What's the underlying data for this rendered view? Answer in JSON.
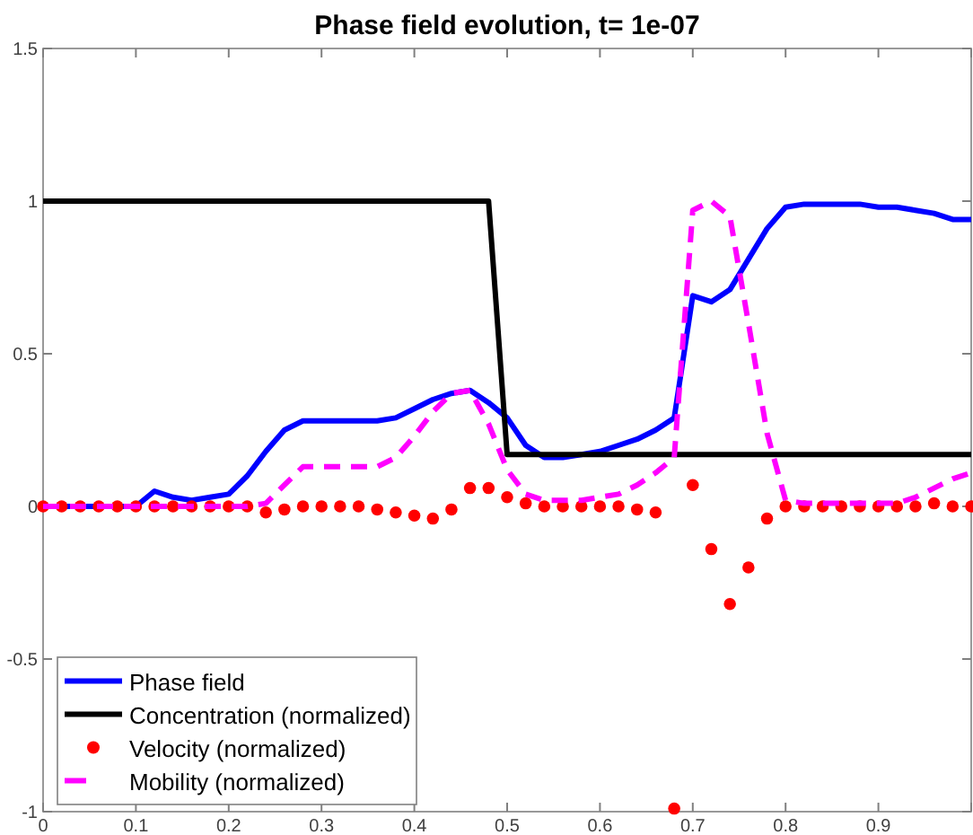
{
  "chart_data": {
    "type": "line",
    "title": "Phase field evolution, t= 1e-07",
    "x": [
      0,
      0.02,
      0.04,
      0.06,
      0.08,
      0.1,
      0.12,
      0.14,
      0.16,
      0.18,
      0.2,
      0.22,
      0.24,
      0.26,
      0.28,
      0.3,
      0.32,
      0.34,
      0.36,
      0.38,
      0.4,
      0.42,
      0.44,
      0.46,
      0.48,
      0.5,
      0.52,
      0.54,
      0.56,
      0.58,
      0.6,
      0.62,
      0.64,
      0.66,
      0.68,
      0.7,
      0.72,
      0.74,
      0.76,
      0.78,
      0.8,
      0.82,
      0.84,
      0.86,
      0.88,
      0.9,
      0.92,
      0.94,
      0.96,
      0.98,
      1
    ],
    "series": [
      {
        "name": "Phase field",
        "color": "#0000ff",
        "line_style": "solid",
        "marker": "none",
        "values": [
          0,
          0,
          0,
          0,
          0,
          0,
          0.05,
          0.03,
          0.02,
          0.03,
          0.04,
          0.1,
          0.18,
          0.25,
          0.28,
          0.28,
          0.28,
          0.28,
          0.28,
          0.29,
          0.32,
          0.35,
          0.37,
          0.38,
          0.34,
          0.29,
          0.2,
          0.16,
          0.16,
          0.17,
          0.18,
          0.2,
          0.22,
          0.25,
          0.29,
          0.69,
          0.67,
          0.71,
          0.81,
          0.91,
          0.98,
          0.99,
          0.99,
          0.99,
          0.99,
          0.98,
          0.98,
          0.97,
          0.96,
          0.94,
          0.94
        ]
      },
      {
        "name": "Concentration (normalized)",
        "color": "#000000",
        "line_style": "solid",
        "marker": "none",
        "x": [
          0,
          0.48,
          0.5,
          1
        ],
        "values": [
          1,
          1,
          0.17,
          0.17
        ]
      },
      {
        "name": "Velocity (normalized)",
        "type": "scatter",
        "color": "#ff0000",
        "marker": "circle",
        "values": [
          0,
          0,
          0,
          0,
          0,
          0,
          0,
          0,
          0,
          0,
          0,
          0,
          -0.02,
          -0.01,
          0,
          0,
          0,
          0,
          -0.01,
          -0.02,
          -0.03,
          -0.04,
          -0.01,
          0.06,
          0.06,
          0.03,
          0.01,
          0,
          0,
          0,
          0,
          0,
          -0.01,
          -0.02,
          -0.99,
          0.07,
          -0.14,
          -0.32,
          -0.2,
          -0.04,
          0,
          0,
          0,
          0,
          0,
          0,
          0,
          0,
          0.01,
          0,
          0
        ]
      },
      {
        "name": "Mobility (normalized)",
        "color": "#ff00ff",
        "line_style": "dashed",
        "marker": "none",
        "values": [
          0,
          0,
          0,
          0,
          0,
          0,
          0,
          0,
          0,
          0,
          0,
          0,
          0.01,
          0.07,
          0.13,
          0.13,
          0.13,
          0.13,
          0.13,
          0.16,
          0.23,
          0.31,
          0.37,
          0.38,
          0.27,
          0.12,
          0.04,
          0.02,
          0.02,
          0.02,
          0.03,
          0.04,
          0.07,
          0.11,
          0.16,
          0.97,
          1,
          0.95,
          0.6,
          0.24,
          0.02,
          0.01,
          0.01,
          0.01,
          0.01,
          0.01,
          0.01,
          0.03,
          0.06,
          0.09,
          0.11
        ]
      }
    ],
    "xlim": [
      0,
      1
    ],
    "xticks": [
      0,
      0.1,
      0.2,
      0.3,
      0.4,
      0.5,
      0.6,
      0.7,
      0.8,
      0.9,
      {
        "value": 1,
        "label": null
      }
    ],
    "ylim": [
      -1,
      1.5
    ],
    "yticks": [
      -1,
      -0.5,
      0,
      0.5,
      1,
      1.5
    ],
    "grid": false,
    "legend": "bottom left"
  }
}
